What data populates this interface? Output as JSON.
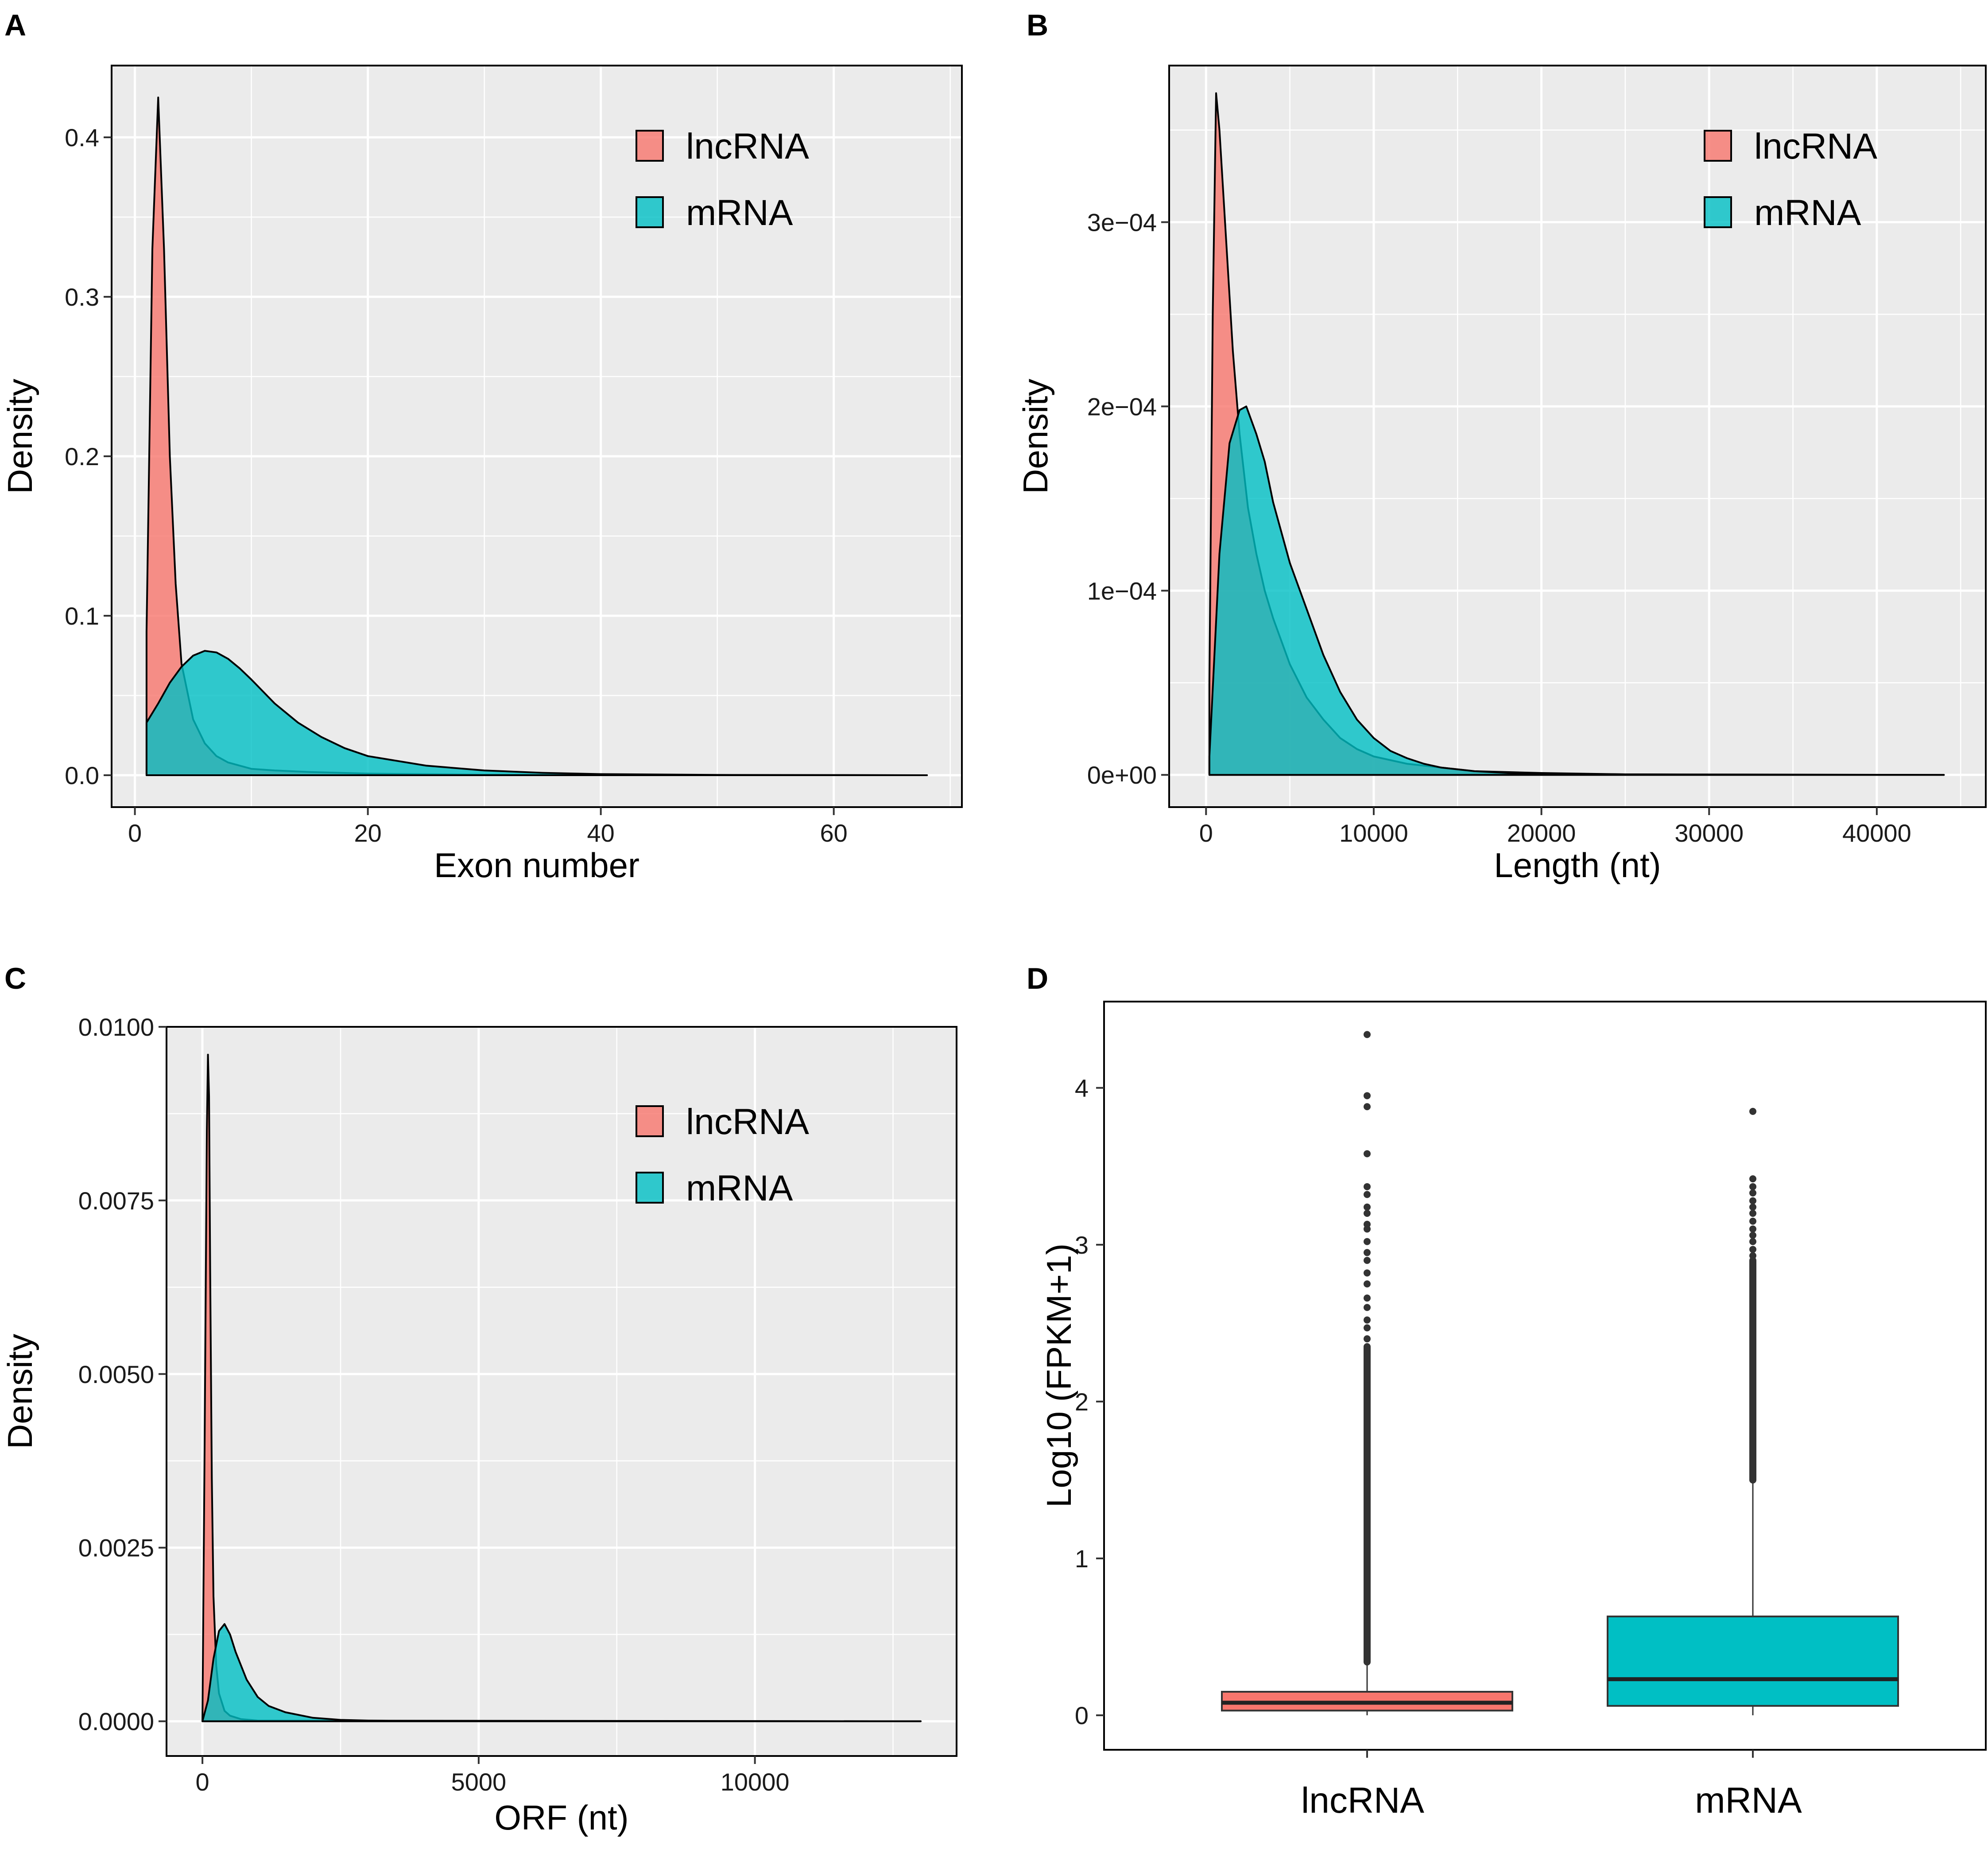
{
  "colors": {
    "lncRNA": "#F8766D",
    "mRNA": "#00BFC4",
    "panel_bg": "#EBEBEB",
    "grid": "#FFFFFF",
    "outlier": "#333333"
  },
  "chart_data": [
    {
      "panel": "A",
      "type": "area",
      "xlabel": "Exon number",
      "ylabel": "Density",
      "xlim": [
        -2,
        71
      ],
      "ylim": [
        -0.02,
        0.445
      ],
      "xticks": [
        0,
        20,
        40,
        60
      ],
      "yticks": [
        0.0,
        0.1,
        0.2,
        0.3,
        0.4
      ],
      "ytick_labels": [
        "0.0",
        "0.1",
        "0.2",
        "0.3",
        "0.4"
      ],
      "xtick_labels": [
        "0",
        "20",
        "40",
        "60"
      ],
      "legend": {
        "position": "top-right",
        "entries": [
          "lncRNA",
          "mRNA"
        ]
      },
      "series": [
        {
          "name": "lncRNA",
          "x": [
            1,
            1.5,
            2,
            2.5,
            3,
            3.5,
            4,
            5,
            6,
            7,
            8,
            10,
            12,
            15,
            20,
            30,
            40,
            68
          ],
          "y": [
            0.09,
            0.33,
            0.425,
            0.33,
            0.2,
            0.12,
            0.07,
            0.035,
            0.02,
            0.012,
            0.008,
            0.004,
            0.003,
            0.002,
            0.001,
            0.0003,
            0.0001,
            0
          ]
        },
        {
          "name": "mRNA",
          "x": [
            1,
            2,
            3,
            4,
            5,
            6,
            7,
            8,
            9,
            10,
            12,
            14,
            16,
            18,
            20,
            25,
            30,
            35,
            40,
            50,
            60,
            68
          ],
          "y": [
            0.033,
            0.045,
            0.058,
            0.068,
            0.075,
            0.078,
            0.077,
            0.073,
            0.067,
            0.06,
            0.045,
            0.033,
            0.024,
            0.017,
            0.012,
            0.006,
            0.003,
            0.0015,
            0.0007,
            0.0002,
            0.0001,
            0
          ]
        }
      ]
    },
    {
      "panel": "B",
      "type": "area",
      "xlabel": "Length (nt)",
      "ylabel": "Density",
      "xlim": [
        -2200,
        46500
      ],
      "ylim": [
        -1.75e-05,
        0.000385
      ],
      "xticks": [
        0,
        10000,
        20000,
        30000,
        40000
      ],
      "xtick_labels": [
        "0",
        "10000",
        "20000",
        "30000",
        "40000"
      ],
      "yticks": [
        0,
        0.0001,
        0.0002,
        0.0003
      ],
      "ytick_labels": [
        "0e+00",
        "1e−04",
        "2e−04",
        "3e−04"
      ],
      "legend": {
        "position": "top-right",
        "entries": [
          "lncRNA",
          "mRNA"
        ]
      },
      "series": [
        {
          "name": "lncRNA",
          "x": [
            200,
            400,
            600,
            800,
            1200,
            1600,
            2000,
            2500,
            3000,
            3500,
            4000,
            5000,
            6000,
            7000,
            8000,
            9000,
            10000,
            12000,
            14000,
            16000,
            20000,
            25000,
            44000
          ],
          "y": [
            5e-05,
            0.00025,
            0.00037,
            0.00035,
            0.00029,
            0.00023,
            0.000185,
            0.000145,
            0.00012,
            0.0001,
            8.5e-05,
            6e-05,
            4.2e-05,
            3e-05,
            2e-05,
            1.4e-05,
            1e-05,
            6e-06,
            4e-06,
            2e-06,
            1e-06,
            3e-07,
            0
          ]
        },
        {
          "name": "mRNA",
          "x": [
            200,
            800,
            1400,
            2000,
            2400,
            3000,
            3500,
            4000,
            5000,
            6000,
            7000,
            8000,
            9000,
            10000,
            11000,
            12000,
            13000,
            14000,
            15000,
            16000,
            18000,
            20000,
            25000,
            30000,
            35000,
            44000
          ],
          "y": [
            1e-05,
            0.00012,
            0.00018,
            0.000198,
            0.0002,
            0.000185,
            0.00017,
            0.000148,
            0.000115,
            9e-05,
            6.5e-05,
            4.5e-05,
            3e-05,
            2e-05,
            1.3e-05,
            9e-06,
            6e-06,
            4e-06,
            3e-06,
            2e-06,
            1e-06,
            7e-07,
            3e-07,
            1e-07,
            5e-08,
            0
          ]
        }
      ]
    },
    {
      "panel": "C",
      "type": "area",
      "xlabel": "ORF (nt)",
      "ylabel": "Density",
      "xlim": [
        -650,
        13650
      ],
      "ylim": [
        -0.0005,
        0.01
      ],
      "xticks": [
        0,
        5000,
        10000
      ],
      "xtick_labels": [
        "0",
        "5000",
        "10000"
      ],
      "yticks": [
        0,
        0.0025,
        0.005,
        0.0075,
        0.01
      ],
      "ytick_labels": [
        "0.0000",
        "0.0025",
        "0.0050",
        "0.0075",
        "0.0100"
      ],
      "legend": {
        "position": "top-right",
        "entries": [
          "lncRNA",
          "mRNA"
        ]
      },
      "series": [
        {
          "name": "lncRNA",
          "x": [
            0,
            40,
            80,
            100,
            120,
            140,
            170,
            200,
            250,
            300,
            400,
            500,
            700,
            1000,
            13000
          ],
          "y": [
            0,
            0.004,
            0.0085,
            0.0096,
            0.009,
            0.0065,
            0.0035,
            0.0018,
            0.0008,
            0.0004,
            0.00015,
            8e-05,
            3e-05,
            1e-05,
            0
          ]
        },
        {
          "name": "mRNA",
          "x": [
            0,
            100,
            200,
            300,
            400,
            500,
            600,
            800,
            1000,
            1200,
            1500,
            2000,
            2500,
            3000,
            4000,
            6000,
            13000
          ],
          "y": [
            0,
            0.0003,
            0.0009,
            0.0013,
            0.0014,
            0.00125,
            0.001,
            0.0006,
            0.00035,
            0.00022,
            0.00013,
            5e-05,
            2e-05,
            1e-05,
            3e-06,
            1e-06,
            0
          ]
        }
      ]
    },
    {
      "panel": "D",
      "type": "box",
      "xlabel": "",
      "ylabel": "Log10 (FPKM+1)",
      "ylim": [
        -0.22,
        4.55
      ],
      "yticks": [
        0,
        1,
        2,
        3,
        4
      ],
      "ytick_labels": [
        "0",
        "1",
        "2",
        "3",
        "4"
      ],
      "categories": [
        "lncRNA",
        "mRNA"
      ],
      "boxes": [
        {
          "name": "lncRNA",
          "min": 0,
          "q1": 0.03,
          "median": 0.08,
          "q3": 0.15,
          "max": 0.34,
          "outlier_range": [
            0.34,
            2.35
          ],
          "outliers": [
            2.4,
            2.47,
            2.52,
            2.6,
            2.66,
            2.75,
            2.82,
            2.9,
            2.95,
            3.02,
            3.1,
            3.13,
            3.2,
            3.24,
            3.32,
            3.37,
            3.58,
            3.88,
            3.95,
            4.34
          ]
        },
        {
          "name": "mRNA",
          "min": 0,
          "q1": 0.06,
          "median": 0.23,
          "q3": 0.63,
          "max": 1.5,
          "outlier_range": [
            1.5,
            2.9
          ],
          "outliers": [
            2.93,
            2.97,
            3.02,
            3.06,
            3.1,
            3.15,
            3.2,
            3.24,
            3.28,
            3.33,
            3.37,
            3.42,
            3.85
          ]
        }
      ]
    }
  ]
}
